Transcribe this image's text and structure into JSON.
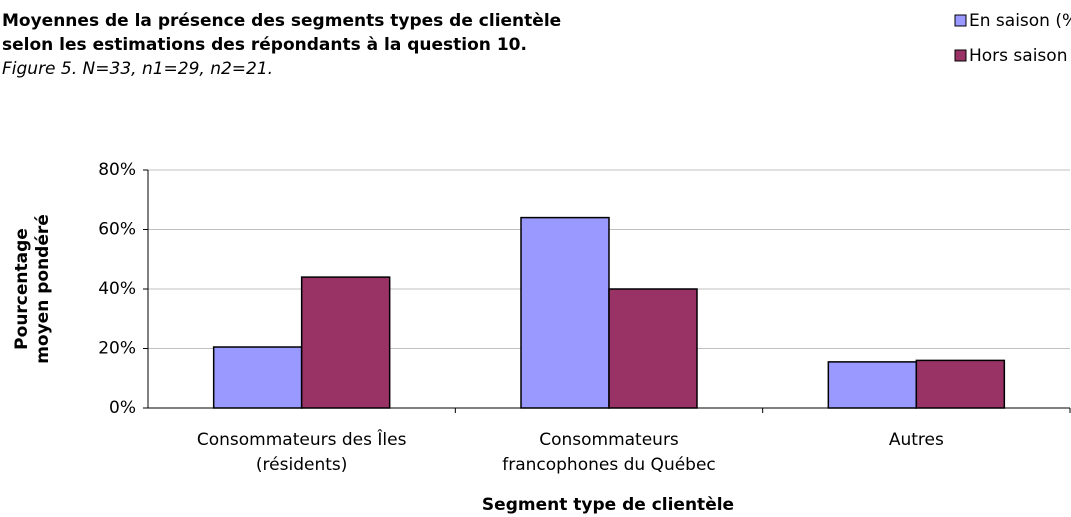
{
  "chart_data": {
    "type": "bar",
    "title": [
      "Moyennes de la présence des segments types de clientèle",
      "selon les estimations des répondants à la question 10."
    ],
    "subtitle": "Figure 5. N=33, n1=29, n2=21.",
    "y_label": [
      "Pourcentage",
      "moyen pondéré"
    ],
    "x_label": "Segment type de clientèle",
    "categories": [
      [
        "Consommateurs des Îles",
        "(résidents)"
      ],
      [
        "Consommateurs",
        "francophones du Québec"
      ],
      [
        "Autres"
      ]
    ],
    "series": [
      {
        "name": "En saison (%)",
        "color": "#9999ff",
        "values": [
          20.5,
          64,
          15.5
        ]
      },
      {
        "name": "Hors saison (%)",
        "color": "#993366",
        "values": [
          44,
          40,
          16
        ]
      }
    ],
    "ylim": [
      0,
      80
    ],
    "yticks": [
      {
        "value": 0,
        "label": "0%"
      },
      {
        "value": 20,
        "label": "20%"
      },
      {
        "value": 40,
        "label": "40%"
      },
      {
        "value": 60,
        "label": "60%"
      },
      {
        "value": 80,
        "label": "80%"
      }
    ],
    "grid": true,
    "legend": "top-right"
  }
}
